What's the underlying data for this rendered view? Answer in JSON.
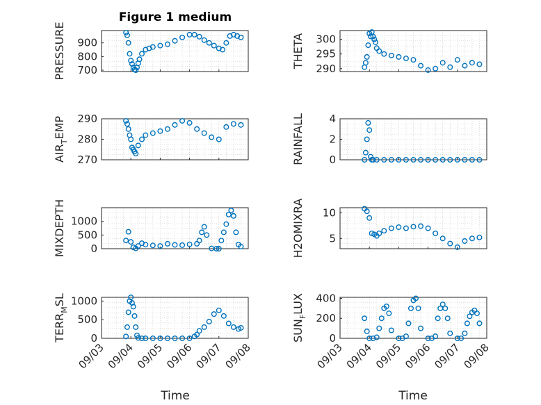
{
  "figure_title": "Figure 1 medium",
  "colors": {
    "marker": "#0072BD",
    "axis": "#262626",
    "grid": "#c8c8c8"
  },
  "chart_data": [
    {
      "id": "pressure",
      "type": "scatter",
      "ylabel": "PRESSURE",
      "ylabel_parts": [
        "PRESSURE"
      ],
      "ylim": [
        690,
        990
      ],
      "yticks": [
        700,
        800,
        900
      ],
      "ytick_labels": [
        "700",
        "800",
        "900"
      ],
      "x": [
        "09/03 20:00",
        "09/03 21:00",
        "09/03 22:00",
        "09/03 23:00",
        "09/04 00:00",
        "09/04 01:00",
        "09/04 02:00",
        "09/04 03:00",
        "09/04 04:00",
        "09/04 05:00",
        "09/04 06:00",
        "09/04 07:00",
        "09/04 09:00",
        "09/04 12:00",
        "09/04 15:00",
        "09/04 18:00",
        "09/05 00:00",
        "09/05 06:00",
        "09/05 12:00",
        "09/05 18:00",
        "09/06 00:00",
        "09/06 04:00",
        "09/06 08:00",
        "09/06 12:00",
        "09/06 16:00",
        "09/06 20:00",
        "09/07 00:00",
        "09/07 03:00",
        "09/07 06:00",
        "09/07 09:00",
        "09/07 12:00",
        "09/07 15:00",
        "09/07 18:00"
      ],
      "y": [
        975,
        955,
        900,
        820,
        770,
        745,
        720,
        705,
        700,
        720,
        750,
        780,
        820,
        850,
        860,
        870,
        880,
        890,
        915,
        940,
        960,
        960,
        945,
        920,
        900,
        880,
        860,
        850,
        900,
        950,
        960,
        950,
        940
      ]
    },
    {
      "id": "theta",
      "type": "scatter",
      "ylabel": "THETA",
      "ylabel_parts": [
        "THETA"
      ],
      "ylim": [
        289,
        303
      ],
      "yticks": [
        290,
        295,
        300
      ],
      "ytick_labels": [
        "290",
        "295",
        "300"
      ],
      "x": [
        "09/03 20:00",
        "09/03 21:00",
        "09/03 22:00",
        "09/03 23:00",
        "09/04 00:00",
        "09/04 01:00",
        "09/04 02:00",
        "09/04 03:00",
        "09/04 04:00",
        "09/04 05:00",
        "09/04 06:00",
        "09/04 08:00",
        "09/04 12:00",
        "09/04 18:00",
        "09/05 00:00",
        "09/05 06:00",
        "09/05 12:00",
        "09/05 18:00",
        "09/06 00:00",
        "09/06 06:00",
        "09/06 12:00",
        "09/06 18:00",
        "09/07 00:00",
        "09/07 06:00",
        "09/07 12:00",
        "09/07 18:00"
      ],
      "y": [
        290.5,
        292,
        294,
        298,
        302,
        301,
        302.5,
        301,
        300,
        299,
        297,
        296,
        295,
        294.5,
        294,
        293.5,
        293,
        291,
        289.5,
        290,
        292,
        290.5,
        293,
        291,
        292,
        291.5
      ]
    },
    {
      "id": "air_temp",
      "type": "scatter",
      "ylabel": "AIR_TEMP",
      "ylabel_parts": [
        "AIR",
        "T",
        "EMP"
      ],
      "ylim": [
        270,
        290
      ],
      "yticks": [
        270,
        280,
        290
      ],
      "ytick_labels": [
        "270",
        "280",
        "290"
      ],
      "x": [
        "09/03 20:00",
        "09/03 21:00",
        "09/03 22:00",
        "09/03 23:00",
        "09/04 00:00",
        "09/04 01:00",
        "09/04 02:00",
        "09/04 03:00",
        "09/04 04:00",
        "09/04 06:00",
        "09/04 09:00",
        "09/04 12:00",
        "09/04 18:00",
        "09/05 00:00",
        "09/05 06:00",
        "09/05 12:00",
        "09/05 18:00",
        "09/06 00:00",
        "09/06 06:00",
        "09/06 12:00",
        "09/06 18:00",
        "09/07 00:00",
        "09/07 06:00",
        "09/07 12:00",
        "09/07 18:00"
      ],
      "y": [
        289,
        287.5,
        285,
        282,
        280,
        276,
        275,
        274,
        273,
        277,
        280,
        282,
        283,
        284,
        285,
        287,
        289,
        288,
        285,
        283,
        281,
        280,
        286,
        287.5,
        287
      ]
    },
    {
      "id": "rainfall",
      "type": "scatter",
      "ylabel": "RAINFALL",
      "ylabel_parts": [
        "RAINFALL"
      ],
      "ylim": [
        0,
        4
      ],
      "yticks": [
        0,
        2,
        4
      ],
      "ytick_labels": [
        "0",
        "2",
        "4"
      ],
      "x": [
        "09/03 20:00",
        "09/03 21:00",
        "09/03 22:00",
        "09/03 23:00",
        "09/04 00:00",
        "09/04 01:00",
        "09/04 02:00",
        "09/04 03:00",
        "09/04 06:00",
        "09/04 12:00",
        "09/04 18:00",
        "09/05 00:00",
        "09/05 06:00",
        "09/05 12:00",
        "09/05 18:00",
        "09/06 00:00",
        "09/06 06:00",
        "09/06 12:00",
        "09/06 18:00",
        "09/07 00:00",
        "09/07 06:00",
        "09/07 12:00",
        "09/07 18:00"
      ],
      "y": [
        0,
        0.7,
        2.0,
        3.6,
        2.9,
        0.3,
        0,
        0,
        0,
        0,
        0,
        0,
        0,
        0,
        0,
        0,
        0,
        0,
        0,
        0,
        0,
        0,
        0
      ]
    },
    {
      "id": "mixdepth",
      "type": "scatter",
      "ylabel": "MIXDEPTH",
      "ylabel_parts": [
        "MIXDEPTH"
      ],
      "ylim": [
        0,
        1500
      ],
      "yticks": [
        0,
        500,
        1000
      ],
      "ytick_labels": [
        "0",
        "500",
        "1000"
      ],
      "x": [
        "09/03 20:00",
        "09/03 22:00",
        "09/04 00:00",
        "09/04 02:00",
        "09/04 04:00",
        "09/04 06:00",
        "09/04 09:00",
        "09/04 12:00",
        "09/04 18:00",
        "09/05 00:00",
        "09/05 06:00",
        "09/05 12:00",
        "09/05 18:00",
        "09/06 00:00",
        "09/06 06:00",
        "09/06 08:00",
        "09/06 10:00",
        "09/06 12:00",
        "09/06 14:00",
        "09/06 18:00",
        "09/06 22:00",
        "09/07 00:00",
        "09/07 02:00",
        "09/07 04:00",
        "09/07 06:00",
        "09/07 08:00",
        "09/07 10:00",
        "09/07 12:00",
        "09/07 14:00",
        "09/07 16:00",
        "09/07 18:00"
      ],
      "y": [
        300,
        620,
        250,
        50,
        10,
        100,
        200,
        150,
        120,
        100,
        180,
        140,
        130,
        160,
        180,
        300,
        600,
        800,
        500,
        10,
        0,
        0,
        300,
        600,
        900,
        1250,
        1400,
        1200,
        600,
        150,
        80
      ]
    },
    {
      "id": "h2omixra",
      "type": "scatter",
      "ylabel": "H2OMIXRA",
      "ylabel_parts": [
        "H2OMIXRA"
      ],
      "ylim": [
        3,
        11
      ],
      "yticks": [
        5,
        10
      ],
      "ytick_labels": [
        "5",
        "10"
      ],
      "x": [
        "09/03 20:00",
        "09/03 22:00",
        "09/04 00:00",
        "09/04 02:00",
        "09/04 04:00",
        "09/04 06:00",
        "09/04 08:00",
        "09/04 12:00",
        "09/04 18:00",
        "09/05 00:00",
        "09/05 06:00",
        "09/05 12:00",
        "09/05 18:00",
        "09/06 00:00",
        "09/06 06:00",
        "09/06 12:00",
        "09/06 18:00",
        "09/07 00:00",
        "09/07 06:00",
        "09/07 12:00",
        "09/07 18:00"
      ],
      "y": [
        10.8,
        10.3,
        9.0,
        6.0,
        5.8,
        5.5,
        6.0,
        6.5,
        7.0,
        7.2,
        7.0,
        7.3,
        7.4,
        7.0,
        6.0,
        5.0,
        4.0,
        3.3,
        4.5,
        5.0,
        5.2
      ]
    },
    {
      "id": "terr_msl",
      "type": "scatter",
      "ylabel": "TERR_MSL",
      "ylabel_parts": [
        "TERR",
        "M",
        "SL"
      ],
      "ylim": [
        0,
        1100
      ],
      "yticks": [
        0,
        500,
        1000
      ],
      "ytick_labels": [
        "0",
        "500",
        "1000"
      ],
      "x": [
        "09/03 20:00",
        "09/03 21:00",
        "09/03 22:00",
        "09/03 23:00",
        "09/04 00:00",
        "09/04 01:00",
        "09/04 02:00",
        "09/04 03:00",
        "09/04 04:00",
        "09/04 05:00",
        "09/04 06:00",
        "09/04 09:00",
        "09/04 12:00",
        "09/04 18:00",
        "09/05 00:00",
        "09/05 06:00",
        "09/05 12:00",
        "09/05 18:00",
        "09/06 00:00",
        "09/06 04:00",
        "09/06 06:00",
        "09/06 08:00",
        "09/06 12:00",
        "09/06 16:00",
        "09/06 20:00",
        "09/07 00:00",
        "09/07 04:00",
        "09/07 08:00",
        "09/07 12:00",
        "09/07 16:00",
        "09/07 18:00"
      ],
      "y": [
        50,
        300,
        700,
        1000,
        1100,
        950,
        850,
        600,
        300,
        80,
        10,
        0,
        0,
        0,
        0,
        0,
        0,
        0,
        0,
        50,
        100,
        200,
        300,
        450,
        650,
        750,
        600,
        400,
        300,
        250,
        280
      ]
    },
    {
      "id": "sun_flux",
      "type": "scatter",
      "ylabel": "SUN_FLUX",
      "ylabel_parts": [
        "SUN",
        "F",
        "LUX"
      ],
      "ylim": [
        0,
        410
      ],
      "yticks": [
        0,
        200,
        400
      ],
      "ytick_labels": [
        "0",
        "200",
        "400"
      ],
      "x": [
        "09/03 20:00",
        "09/03 22:00",
        "09/04 00:00",
        "09/04 03:00",
        "09/04 06:00",
        "09/04 08:00",
        "09/04 10:00",
        "09/04 12:00",
        "09/04 14:00",
        "09/04 16:00",
        "09/04 18:00",
        "09/05 00:00",
        "09/05 03:00",
        "09/05 06:00",
        "09/05 08:00",
        "09/05 10:00",
        "09/05 12:00",
        "09/05 14:00",
        "09/05 16:00",
        "09/05 18:00",
        "09/06 00:00",
        "09/06 03:00",
        "09/06 06:00",
        "09/06 08:00",
        "09/06 10:00",
        "09/06 12:00",
        "09/06 14:00",
        "09/06 16:00",
        "09/06 18:00",
        "09/07 00:00",
        "09/07 03:00",
        "09/07 06:00",
        "09/07 08:00",
        "09/07 10:00",
        "09/07 12:00",
        "09/07 14:00",
        "09/07 16:00",
        "09/07 18:00"
      ],
      "y": [
        200,
        70,
        0,
        0,
        10,
        100,
        200,
        300,
        320,
        250,
        80,
        0,
        0,
        20,
        150,
        300,
        380,
        400,
        300,
        100,
        0,
        0,
        20,
        200,
        300,
        340,
        300,
        200,
        50,
        0,
        0,
        50,
        150,
        220,
        260,
        280,
        250,
        150
      ]
    }
  ],
  "x_axis": {
    "label": "Time",
    "tick_labels": [
      "09/03",
      "09/04",
      "09/05",
      "09/06",
      "09/07",
      "09/08"
    ],
    "range": [
      "09/03",
      "09/08"
    ]
  }
}
